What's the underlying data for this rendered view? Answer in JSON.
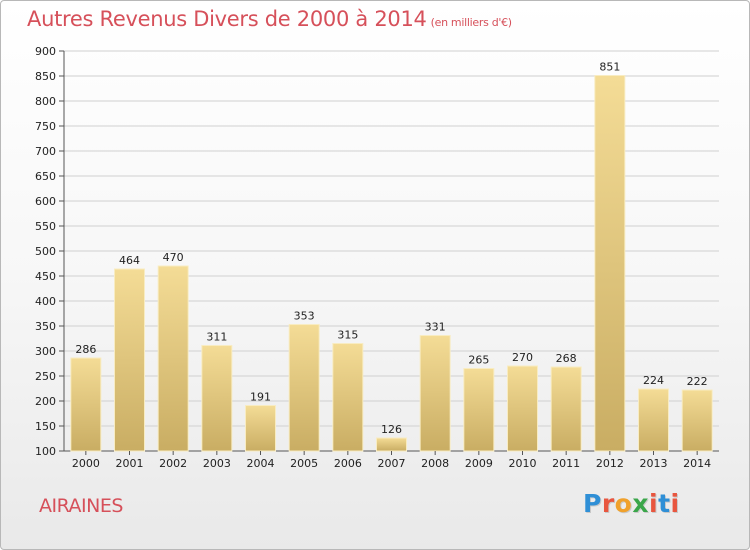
{
  "page": {
    "title": "Autres Revenus Divers de 2000 à 2014",
    "title_unit": "(en milliers d'€)",
    "location": "AIRAINES",
    "logo": {
      "letters": [
        "P",
        "r",
        "o",
        "x",
        "i",
        "t",
        "i"
      ],
      "colors": [
        "#2f8fd6",
        "#e8563f",
        "#f0a12c",
        "#3aa64a",
        "#e8563f",
        "#2f8fd6",
        "#e8563f"
      ]
    }
  },
  "chart_data": {
    "type": "bar",
    "title": "Autres Revenus Divers de 2000 à 2014",
    "subtitle": "(en milliers d'€)",
    "xlabel": "",
    "ylabel": "",
    "categories": [
      "2000",
      "2001",
      "2002",
      "2003",
      "2004",
      "2005",
      "2006",
      "2007",
      "2008",
      "2009",
      "2010",
      "2011",
      "2012",
      "2013",
      "2014"
    ],
    "values": [
      286,
      464,
      470,
      311,
      191,
      353,
      315,
      126,
      331,
      265,
      270,
      268,
      851,
      224,
      222
    ],
    "ylim": [
      100,
      900
    ],
    "yticks": [
      100,
      150,
      200,
      250,
      300,
      350,
      400,
      450,
      500,
      550,
      600,
      650,
      700,
      750,
      800,
      850,
      900
    ],
    "grid": true,
    "legend": "none",
    "bar_color": "#e8cf86"
  }
}
